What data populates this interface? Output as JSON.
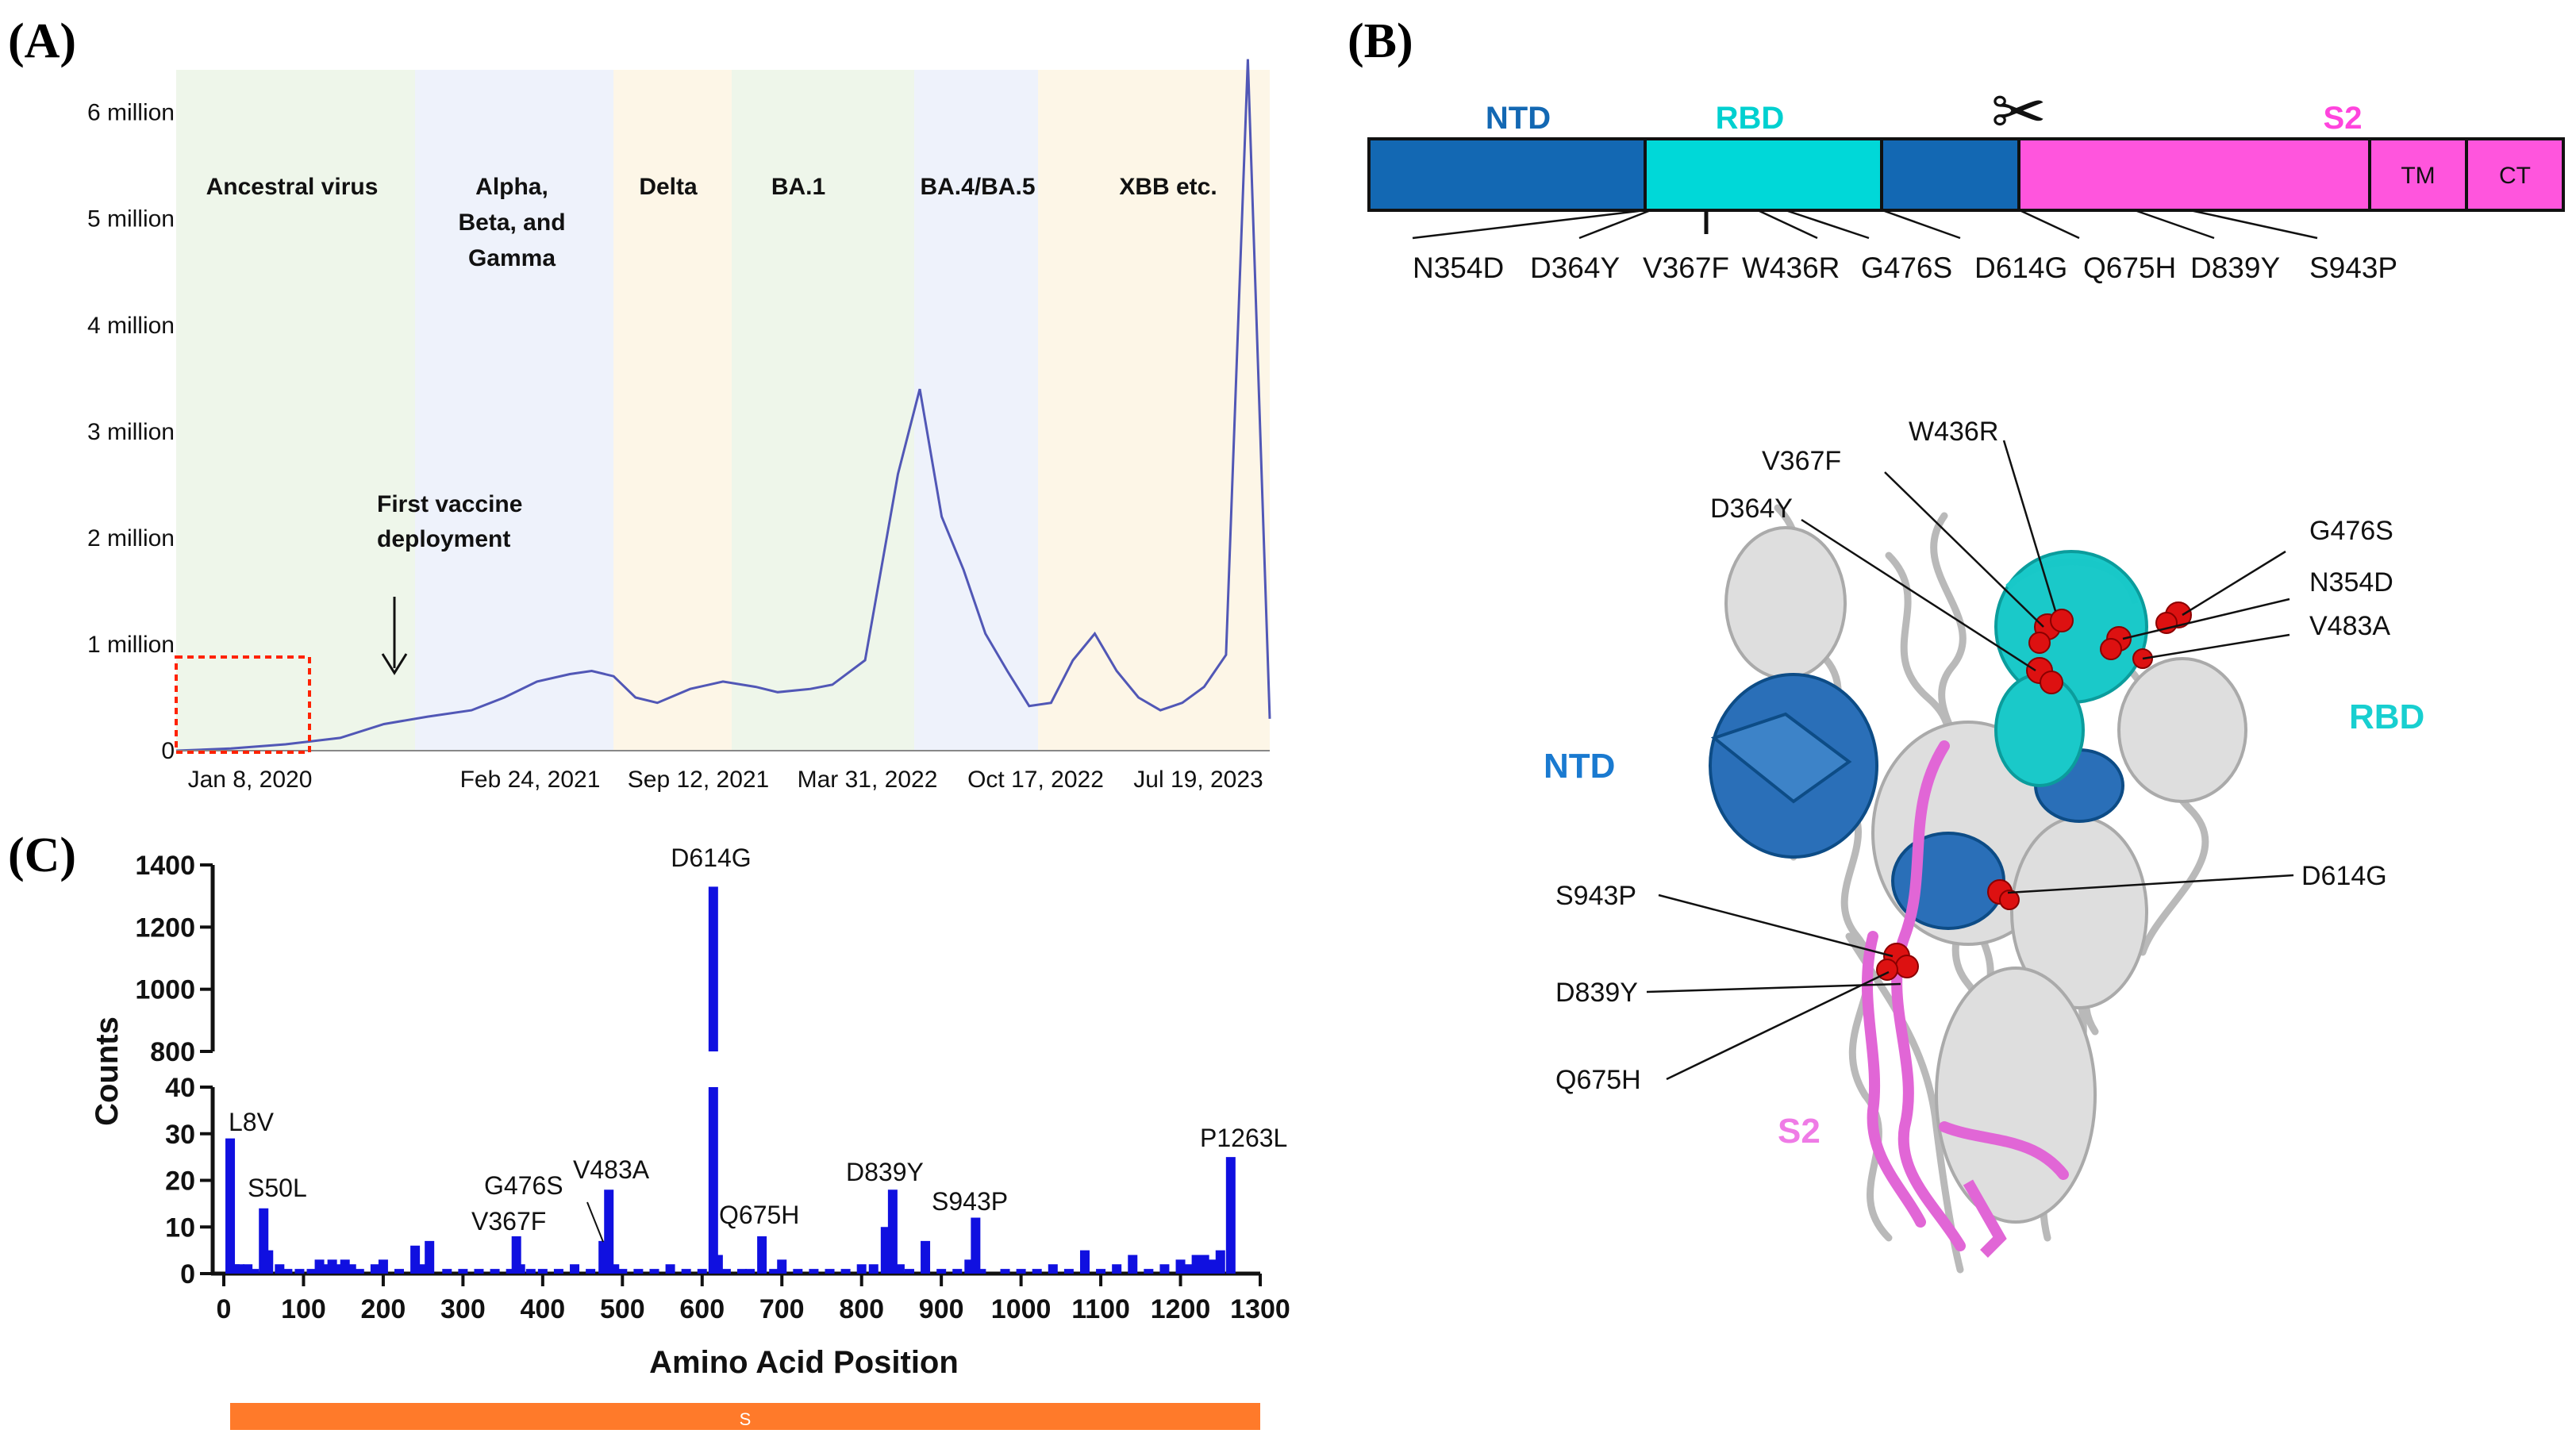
{
  "panels": {
    "a": "(A)",
    "b": "(B)",
    "c": "(C)"
  },
  "colors": {
    "line": "#5157b6",
    "bar": "#1010e0",
    "ntd": "#1368b3",
    "rbd": "#00d8d8",
    "s2": "#ff55dd",
    "s_bar": "#ff7a2a",
    "era_green": "#eef6ea",
    "era_blue": "#eef2fb",
    "era_orange": "#fdf6e7",
    "mutation_red": "#dd1111"
  },
  "chart_data": [
    {
      "id": "A",
      "type": "line",
      "title": "",
      "xlabel": "",
      "ylabel": "",
      "ylim": [
        0,
        6400000
      ],
      "ytick_values": [
        0,
        1000000,
        2000000,
        3000000,
        4000000,
        5000000,
        6000000
      ],
      "ytick_labels": [
        "0",
        "1 million",
        "2 million",
        "3 million",
        "4 million",
        "5 million",
        "6 million"
      ],
      "xtick_labels": [
        "Jan 8, 2020",
        "Feb 24, 2021",
        "Sep 12, 2021",
        "Mar 31, 2022",
        "Oct 17, 2022",
        "Jul 19, 2023"
      ],
      "eras": [
        {
          "label": "Ancestral virus",
          "color": "green"
        },
        {
          "label": "Alpha, Beta, and Gamma",
          "color": "blue"
        },
        {
          "label": "Delta",
          "color": "orange"
        },
        {
          "label": "BA.1",
          "color": "green"
        },
        {
          "label": "BA.4/BA.5",
          "color": "blue"
        },
        {
          "label": "XBB  etc.",
          "color": "orange"
        }
      ],
      "annotation": "First vaccine deployment",
      "x": [
        0,
        0.05,
        0.1,
        0.15,
        0.19,
        0.23,
        0.27,
        0.3,
        0.33,
        0.36,
        0.38,
        0.4,
        0.42,
        0.44,
        0.47,
        0.5,
        0.53,
        0.55,
        0.58,
        0.6,
        0.63,
        0.66,
        0.68,
        0.7,
        0.72,
        0.74,
        0.76,
        0.78,
        0.8,
        0.82,
        0.84,
        0.86,
        0.88,
        0.9,
        0.92,
        0.94,
        0.96,
        0.98,
        1.0
      ],
      "y": [
        0,
        20000,
        60000,
        120000,
        250000,
        320000,
        380000,
        500000,
        650000,
        720000,
        750000,
        700000,
        500000,
        450000,
        580000,
        650000,
        600000,
        550000,
        580000,
        620000,
        850000,
        2600000,
        3400000,
        2200000,
        1700000,
        1100000,
        750000,
        420000,
        450000,
        850000,
        1100000,
        750000,
        500000,
        380000,
        450000,
        600000,
        900000,
        6500000,
        300000
      ]
    },
    {
      "id": "C",
      "type": "bar",
      "title": "",
      "xlabel": "Amino Acid Position",
      "ylabel": "Counts",
      "xlim": [
        0,
        1300
      ],
      "xticks": [
        "0",
        "100",
        "200",
        "300",
        "400",
        "500",
        "600",
        "700",
        "800",
        "900",
        "1000",
        "1100",
        "1200",
        "1300"
      ],
      "ylim_lower": [
        0,
        40
      ],
      "ylim_upper": [
        800,
        1400
      ],
      "yticks_lower": [
        "0",
        "10",
        "20",
        "30",
        "40"
      ],
      "yticks_upper": [
        "800",
        "1000",
        "1200",
        "1400"
      ],
      "bar_domain_label": "S",
      "x": [
        8,
        14,
        20,
        30,
        38,
        50,
        56,
        70,
        80,
        95,
        110,
        120,
        128,
        136,
        145,
        152,
        160,
        170,
        190,
        200,
        220,
        240,
        250,
        258,
        280,
        300,
        320,
        340,
        360,
        367,
        372,
        385,
        400,
        420,
        440,
        460,
        476,
        483,
        490,
        500,
        520,
        540,
        560,
        580,
        600,
        614,
        620,
        630,
        650,
        660,
        675,
        690,
        700,
        720,
        740,
        760,
        780,
        800,
        815,
        830,
        839,
        848,
        860,
        880,
        900,
        920,
        935,
        943,
        950,
        980,
        1000,
        1020,
        1040,
        1060,
        1080,
        1100,
        1120,
        1140,
        1160,
        1180,
        1200,
        1210,
        1220,
        1230,
        1240,
        1250,
        1263
      ],
      "y": [
        29,
        2,
        2,
        2,
        1,
        14,
        5,
        2,
        1,
        1,
        1,
        3,
        2,
        3,
        2,
        3,
        2,
        1,
        2,
        3,
        1,
        6,
        2,
        7,
        1,
        1,
        1,
        1,
        1,
        8,
        2,
        1,
        1,
        1,
        2,
        1,
        7,
        18,
        2,
        1,
        1,
        1,
        2,
        1,
        1,
        1330,
        4,
        1,
        1,
        1,
        8,
        1,
        3,
        1,
        1,
        1,
        1,
        2,
        2,
        10,
        18,
        2,
        1,
        7,
        1,
        1,
        3,
        12,
        1,
        1,
        1,
        1,
        2,
        1,
        5,
        1,
        2,
        4,
        1,
        2,
        3,
        2,
        4,
        4,
        3,
        5,
        25
      ],
      "annotations": [
        "L8V",
        "S50L",
        "V367F",
        "G476S",
        "V483A",
        "D614G",
        "Q675H",
        "D839Y",
        "S943P",
        "P1263L"
      ]
    }
  ],
  "panel_b": {
    "domains": {
      "ntd": "NTD",
      "rbd": "RBD",
      "s2": "S2",
      "tm": "TM",
      "ct": "CT"
    },
    "scissors": "✂",
    "mutations": [
      "N354D",
      "D364Y",
      "V367F",
      "W436R",
      "G476S",
      "D614G",
      "Q675H",
      "D839Y",
      "S943P"
    ],
    "structure_labels": {
      "ntd": "NTD",
      "rbd": "RBD",
      "s2": "S2",
      "mutations": [
        "W436R",
        "V367F",
        "D364Y",
        "G476S",
        "N354D",
        "V483A",
        "D614G",
        "S943P",
        "D839Y",
        "Q675H"
      ]
    }
  }
}
